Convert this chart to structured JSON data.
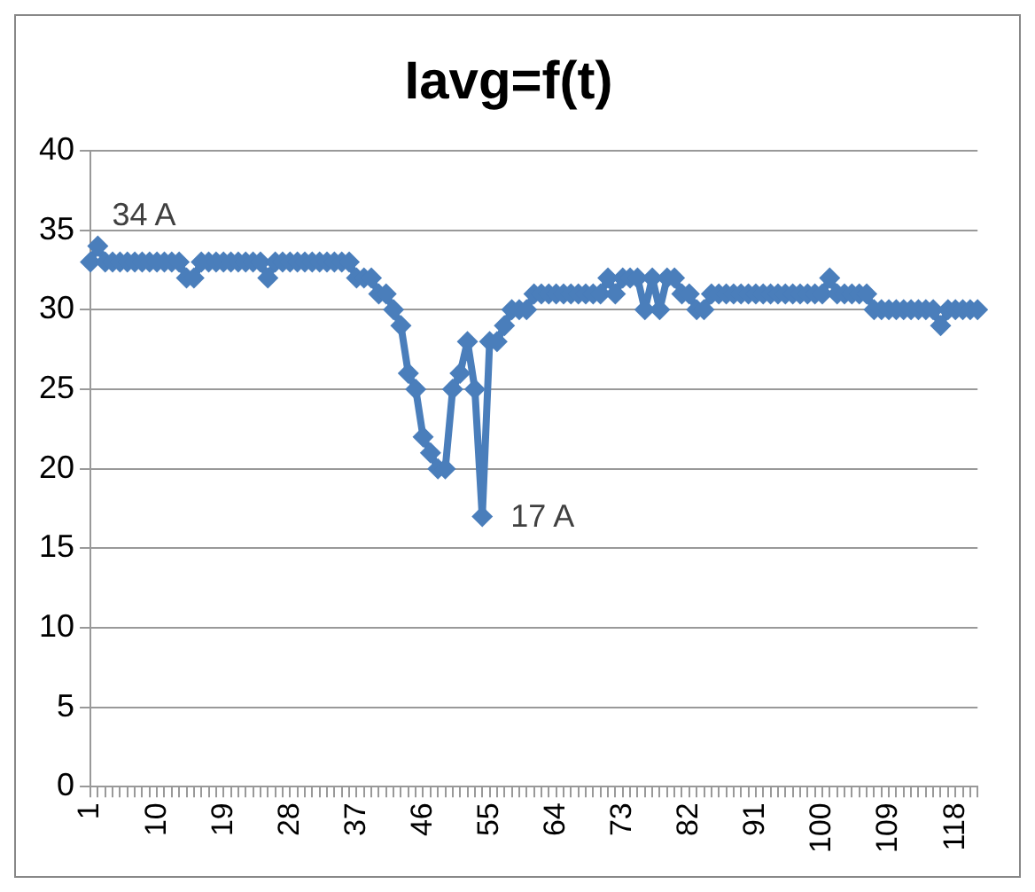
{
  "chart_data": {
    "type": "line",
    "title": "Iavg=f(t)",
    "categories": [
      "1",
      null,
      null,
      null,
      null,
      null,
      null,
      null,
      null,
      "10",
      null,
      null,
      null,
      null,
      null,
      null,
      null,
      null,
      "19",
      null,
      null,
      null,
      null,
      null,
      null,
      null,
      null,
      "28",
      null,
      null,
      null,
      null,
      null,
      null,
      null,
      null,
      "37",
      null,
      null,
      null,
      null,
      null,
      null,
      null,
      null,
      "46",
      null,
      null,
      null,
      null,
      null,
      null,
      null,
      null,
      "55",
      null,
      null,
      null,
      null,
      null,
      null,
      null,
      null,
      "64",
      null,
      null,
      null,
      null,
      null,
      null,
      null,
      null,
      "73",
      null,
      null,
      null,
      null,
      null,
      null,
      null,
      null,
      "82",
      null,
      null,
      null,
      null,
      null,
      null,
      null,
      null,
      "91",
      null,
      null,
      null,
      null,
      null,
      null,
      null,
      null,
      "100",
      null,
      null,
      null,
      null,
      null,
      null,
      null,
      null,
      "109",
      null,
      null,
      null,
      null,
      null,
      null,
      null,
      null,
      "118",
      null,
      null,
      null
    ],
    "series": [
      {
        "color": "#4a7ebb",
        "values": [
          33,
          34,
          33,
          33,
          33,
          33,
          33,
          33,
          33,
          33,
          33,
          33,
          33,
          32,
          32,
          33,
          33,
          33,
          33,
          33,
          33,
          33,
          33,
          33,
          32,
          33,
          33,
          33,
          33,
          33,
          33,
          33,
          33,
          33,
          33,
          33,
          32,
          32,
          32,
          31,
          31,
          30,
          29,
          26,
          25,
          22,
          21,
          20,
          20,
          25,
          26,
          28,
          25,
          17,
          28,
          28,
          29,
          30,
          30,
          30,
          31,
          31,
          31,
          31,
          31,
          31,
          31,
          31,
          31,
          31,
          32,
          31,
          32,
          32,
          32,
          30,
          32,
          30,
          32,
          32,
          31,
          31,
          30,
          30,
          31,
          31,
          31,
          31,
          31,
          31,
          31,
          31,
          31,
          31,
          31,
          31,
          31,
          31,
          31,
          31,
          32,
          31,
          31,
          31,
          31,
          31,
          30,
          30,
          30,
          30,
          30,
          30,
          30,
          30,
          30,
          29,
          30,
          30,
          30,
          30,
          30
        ]
      }
    ],
    "ylim": [
      0,
      40
    ],
    "yticks": [
      0,
      5,
      10,
      15,
      20,
      25,
      30,
      35,
      40
    ],
    "grid": "y",
    "legend": false,
    "marker": "diamond",
    "line_style": "solid",
    "annotations": [
      "34 A",
      "17 A"
    ]
  }
}
